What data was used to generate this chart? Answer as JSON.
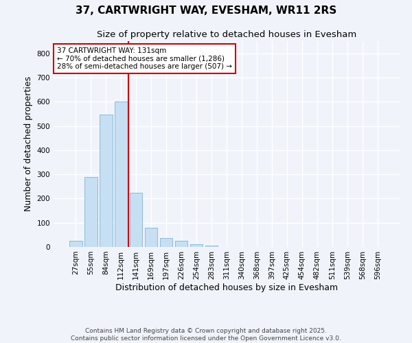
{
  "title": "37, CARTWRIGHT WAY, EVESHAM, WR11 2RS",
  "subtitle": "Size of property relative to detached houses in Evesham",
  "xlabel": "Distribution of detached houses by size in Evesham",
  "ylabel": "Number of detached properties",
  "bar_color": "#c6dff2",
  "bar_edge_color": "#7fb3d9",
  "background_color": "#f0f4fa",
  "plot_bg_color": "#f0f4fa",
  "grid_color": "#ffffff",
  "annotation_line_color": "#cc0000",
  "categories": [
    "27sqm",
    "55sqm",
    "84sqm",
    "112sqm",
    "141sqm",
    "169sqm",
    "197sqm",
    "226sqm",
    "254sqm",
    "283sqm",
    "311sqm",
    "340sqm",
    "368sqm",
    "397sqm",
    "425sqm",
    "454sqm",
    "482sqm",
    "511sqm",
    "539sqm",
    "568sqm",
    "596sqm"
  ],
  "values": [
    25,
    290,
    547,
    600,
    225,
    80,
    37,
    26,
    12,
    7,
    0,
    0,
    0,
    0,
    0,
    0,
    0,
    0,
    0,
    0,
    0
  ],
  "ylim": [
    0,
    850
  ],
  "yticks": [
    0,
    100,
    200,
    300,
    400,
    500,
    600,
    700,
    800
  ],
  "property_label": "37 CARTWRIGHT WAY: 131sqm",
  "annotation_line1": "← 70% of detached houses are smaller (1,286)",
  "annotation_line2": "28% of semi-detached houses are larger (507) →",
  "red_line_x": 3.5,
  "footer_line1": "Contains HM Land Registry data © Crown copyright and database right 2025.",
  "footer_line2": "Contains public sector information licensed under the Open Government Licence v3.0.",
  "title_fontsize": 11,
  "subtitle_fontsize": 9.5,
  "axis_label_fontsize": 9,
  "tick_fontsize": 7.5,
  "annotation_fontsize": 7.5,
  "footer_fontsize": 6.5
}
